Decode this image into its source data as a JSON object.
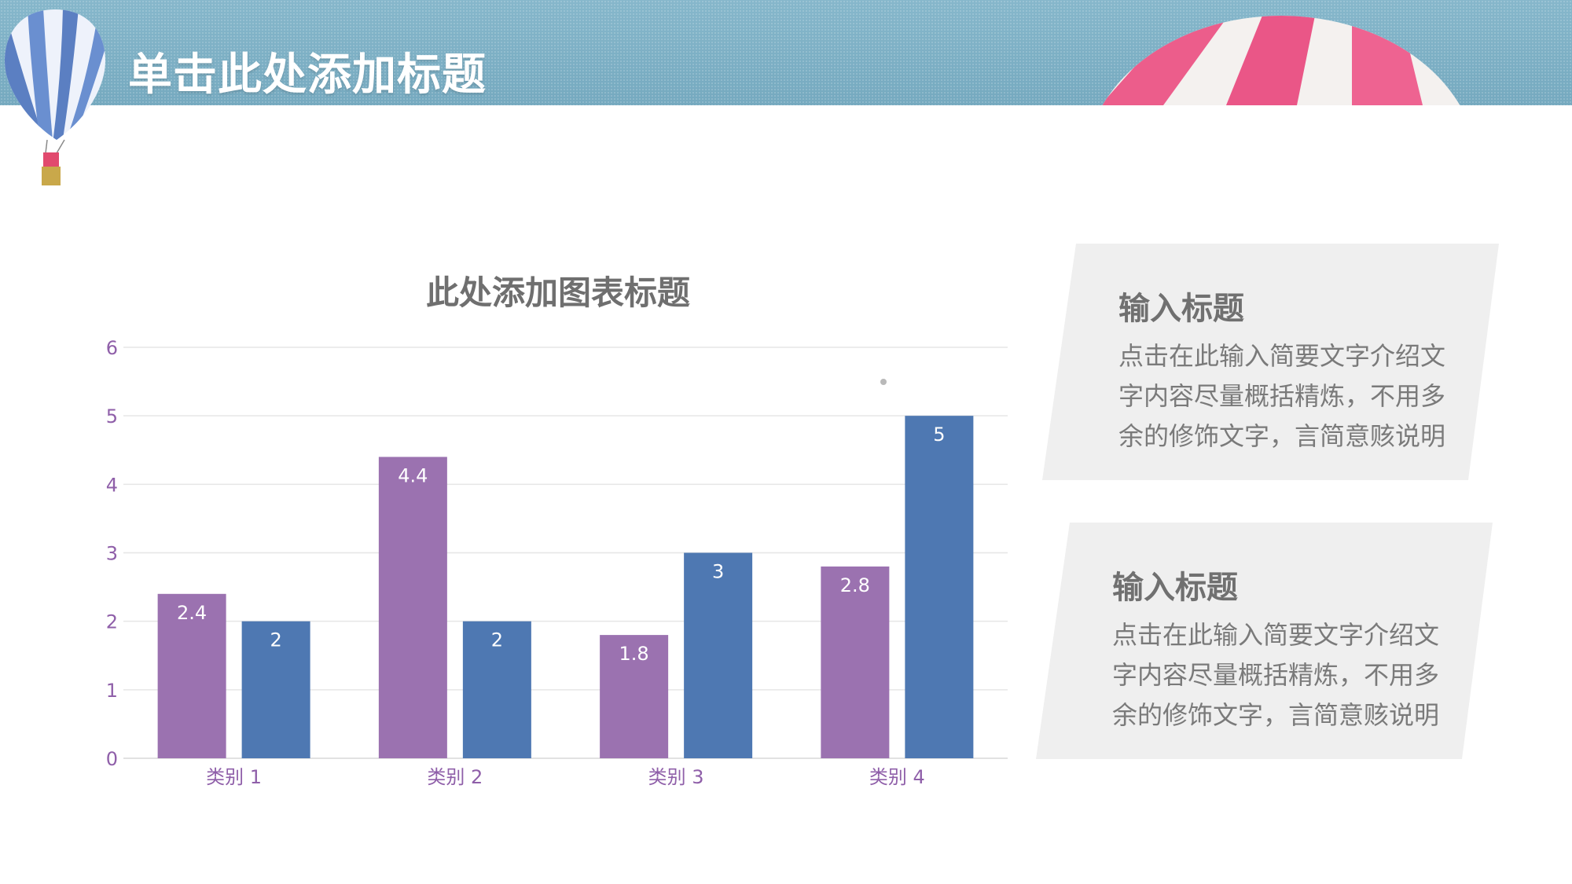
{
  "slide": {
    "title": "单击此处添加标题"
  },
  "colors": {
    "banner": "#7fb0c4",
    "series_purple": "#9b72b0",
    "series_blue": "#4e78b2",
    "axis_text": "#8f5fa9",
    "panel_bg": "#efefef"
  },
  "panels": [
    {
      "title": "输入标题",
      "text": "点击在此输入简要文字介绍文字内容尽量概括精炼，不用多余的修饰文字，言简意赅说明"
    },
    {
      "title": "输入标题",
      "text": "点击在此输入简要文字介绍文字内容尽量概括精炼，不用多余的修饰文字，言简意赅说明"
    }
  ],
  "chart_data": {
    "type": "bar",
    "title": "此处添加图表标题",
    "categories": [
      "类别 1",
      "类别 2",
      "类别 3",
      "类别 4"
    ],
    "series": [
      {
        "values": [
          2.4,
          4.4,
          1.8,
          2.8
        ],
        "color": "#9b72b0"
      },
      {
        "values": [
          2,
          2,
          3,
          5
        ],
        "color": "#4e78b2"
      }
    ],
    "yticks": [
      "0",
      "1",
      "2",
      "3",
      "4",
      "5",
      "6"
    ],
    "ylim": [
      0,
      6
    ],
    "grid": true,
    "data_labels": true,
    "legend": "none"
  }
}
